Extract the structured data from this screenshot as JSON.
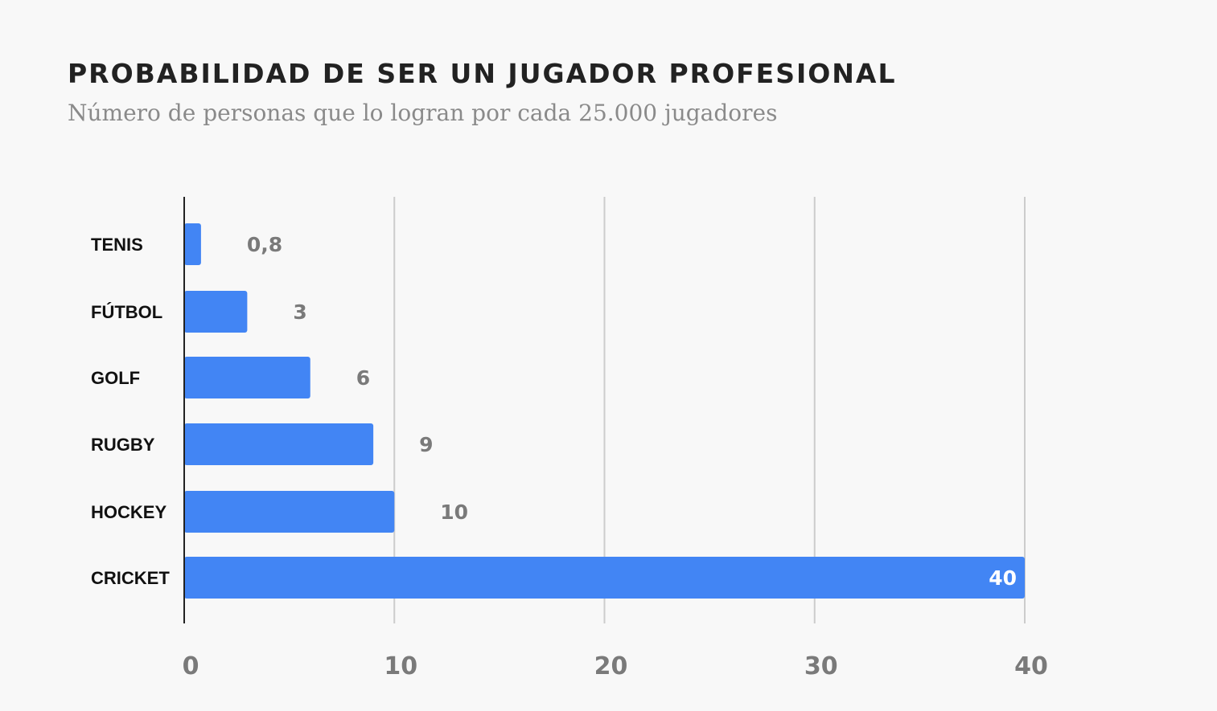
{
  "header": {
    "title": "PROBABILIDAD DE SER UN JUGADOR PROFESIONAL",
    "subtitle": "Número de personas que lo logran por cada 25.000 jugadores"
  },
  "colors": {
    "bar": "#4285f4",
    "grid": "#cccccc",
    "axis": "#222222"
  },
  "chart_data": {
    "type": "bar",
    "orientation": "horizontal",
    "title": "PROBABILIDAD DE SER UN JUGADOR PROFESIONAL",
    "subtitle": "Número de personas que lo logran por cada 25.000 jugadores",
    "categories": [
      "TENIS",
      "FÚTBOL",
      "GOLF",
      "RUGBY",
      "HOCKEY",
      "CRICKET"
    ],
    "values": [
      0.8,
      3,
      6,
      9,
      10,
      40
    ],
    "value_labels": [
      "0,8",
      "3",
      "6",
      "9",
      "10",
      "40"
    ],
    "xlim": [
      0,
      40
    ],
    "xticks": [
      0,
      10,
      20,
      30,
      40
    ],
    "xtick_labels": [
      "0",
      "10",
      "20",
      "30",
      "40"
    ],
    "xlabel": "",
    "ylabel": "",
    "grid": true,
    "legend": "none"
  }
}
